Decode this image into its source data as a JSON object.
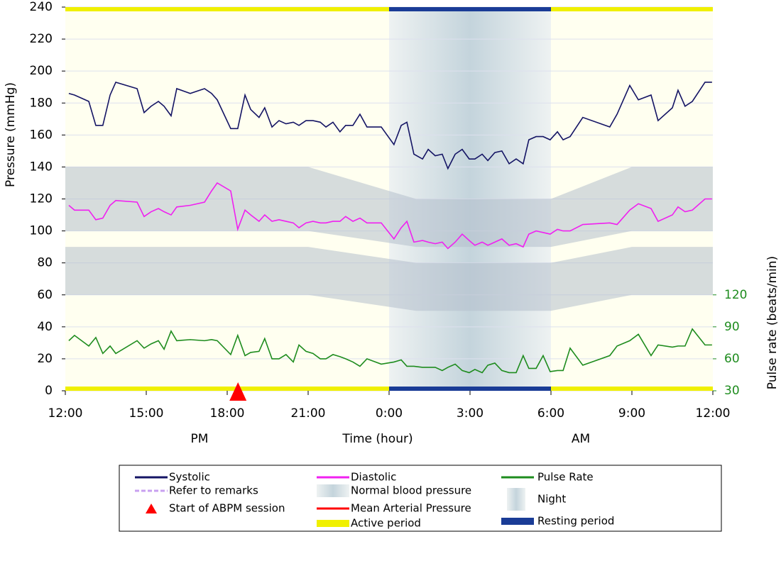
{
  "chart_data": {
    "type": "line",
    "x": [
      0.13,
      0.34,
      0.87,
      1.13,
      1.39,
      1.66,
      1.87,
      2.66,
      2.92,
      3.18,
      3.45,
      3.66,
      3.92,
      4.13,
      4.63,
      5.16,
      5.42,
      5.63,
      6.13,
      6.39,
      6.66,
      6.87,
      7.18,
      7.39,
      7.66,
      7.92,
      8.18,
      8.45,
      8.66,
      8.92,
      9.18,
      9.45,
      9.66,
      9.92,
      10.18,
      10.39,
      10.66,
      10.92,
      11.18,
      11.71,
      12.18,
      12.45,
      12.66,
      12.92,
      13.24,
      13.45,
      13.71,
      13.97,
      14.18,
      14.45,
      14.71,
      14.97,
      15.18,
      15.45,
      15.66,
      15.92,
      16.18,
      16.45,
      16.71,
      16.97,
      17.18,
      17.45,
      17.71,
      17.97,
      18.24,
      18.45,
      18.71,
      19.18,
      20.18,
      20.45,
      20.92,
      21.24,
      21.71,
      21.97,
      22.5,
      22.71,
      22.97,
      23.24,
      23.71,
      23.97
    ],
    "xlim": [
      0,
      24
    ],
    "xticks": [
      {
        "value": 0,
        "label": "12:00"
      },
      {
        "value": 3,
        "label": "15:00"
      },
      {
        "value": 6,
        "label": "18:00"
      },
      {
        "value": 9,
        "label": "21:00"
      },
      {
        "value": 12,
        "label": "0:00"
      },
      {
        "value": 15,
        "label": "3:00"
      },
      {
        "value": 18,
        "label": "6:00"
      },
      {
        "value": 21,
        "label": "9:00"
      },
      {
        "value": 24,
        "label": "12:00"
      }
    ],
    "xlabel": "Time (hour)",
    "annotations": [
      "PM",
      "AM"
    ],
    "ylabel": "Pressure (mmHg)",
    "ylim": [
      0,
      240
    ],
    "yticks": [
      0,
      20,
      40,
      60,
      80,
      100,
      120,
      140,
      160,
      180,
      200,
      220,
      240
    ],
    "y2label": "Pulse rate (beats/min)",
    "y2lim": [
      30,
      390
    ],
    "y2ticks": [
      30,
      60,
      90,
      120
    ],
    "grid": true,
    "series": [
      {
        "name": "Systolic",
        "color": "#141464",
        "values": [
          186,
          185,
          181,
          166,
          166,
          185,
          193,
          189,
          174,
          178,
          181,
          178,
          172,
          189,
          186,
          189,
          186,
          182,
          164,
          164,
          185,
          176,
          171,
          177,
          165,
          169,
          167,
          168,
          166,
          169,
          169,
          168,
          165,
          168,
          162,
          166,
          166,
          173,
          165,
          165,
          154,
          166,
          168,
          148,
          145,
          151,
          147,
          148,
          139,
          148,
          151,
          145,
          145,
          148,
          144,
          149,
          150,
          142,
          145,
          142,
          157,
          159,
          159,
          157,
          162,
          157,
          159,
          171,
          165,
          173,
          191,
          182,
          185,
          169,
          177,
          188,
          178,
          181,
          193,
          193
        ]
      },
      {
        "name": "Diastolic",
        "color": "#f020f0",
        "values": [
          116,
          113,
          113,
          107,
          108,
          116,
          119,
          118,
          109,
          112,
          114,
          112,
          110,
          115,
          116,
          118,
          125,
          130,
          125,
          101,
          113,
          110,
          106,
          110,
          106,
          107,
          106,
          105,
          102,
          105,
          106,
          105,
          105,
          106,
          106,
          109,
          106,
          108,
          105,
          105,
          95,
          102,
          106,
          93,
          94,
          93,
          92,
          93,
          89,
          93,
          98,
          94,
          91,
          93,
          91,
          93,
          95,
          91,
          92,
          90,
          98,
          100,
          99,
          98,
          101,
          100,
          100,
          104,
          105,
          104,
          113,
          117,
          114,
          106,
          110,
          115,
          112,
          113,
          120,
          120
        ]
      },
      {
        "name": "Pulse Rate",
        "color": "#1e8c1e",
        "axis": "y2",
        "values": [
          77,
          82,
          72,
          80,
          65,
          72,
          65,
          77,
          70,
          74,
          77,
          69,
          86,
          77,
          78,
          77,
          78,
          77,
          64,
          82,
          63,
          66,
          67,
          79,
          60,
          60,
          64,
          57,
          73,
          67,
          65,
          60,
          60,
          64,
          62,
          60,
          57,
          53,
          60,
          55,
          57,
          59,
          53,
          53,
          52,
          52,
          52,
          49,
          52,
          55,
          49,
          47,
          50,
          47,
          54,
          56,
          49,
          47,
          47,
          63,
          51,
          51,
          63,
          48,
          49,
          49,
          70,
          54,
          63,
          72,
          77,
          83,
          63,
          73,
          71,
          72,
          72,
          88,
          73,
          73
        ]
      }
    ],
    "normal_bp": {
      "name": "Normal blood pressure",
      "color": "#b4c0cc",
      "x": [
        0,
        9,
        13,
        18,
        21,
        24
      ],
      "bands": [
        {
          "upper": [
            140,
            140,
            120,
            120,
            140,
            140
          ],
          "lower": [
            100,
            100,
            90,
            90,
            100,
            100
          ]
        },
        {
          "upper": [
            90,
            90,
            80,
            80,
            90,
            90
          ],
          "lower": [
            60,
            60,
            50,
            50,
            60,
            60
          ]
        }
      ]
    },
    "night": {
      "name": "Night",
      "color": "#c4d4dc",
      "range": [
        12,
        18
      ]
    },
    "active_period": {
      "name": "Active period",
      "color": "#f0f000",
      "ranges": [
        [
          0,
          12
        ],
        [
          18,
          24
        ]
      ]
    },
    "resting_period": {
      "name": "Resting period",
      "color": "#1a3c96",
      "ranges": [
        [
          12,
          18
        ]
      ]
    },
    "start_marker": {
      "name": "Start of ABPM session",
      "color": "#ff0000",
      "x": 6.4
    },
    "legend_only": [
      {
        "name": "Refer to remarks",
        "color": "#c8a0f0"
      },
      {
        "name": "Mean Arterial Pressure",
        "color": "#ff0000"
      }
    ],
    "background": "#fffff0"
  }
}
